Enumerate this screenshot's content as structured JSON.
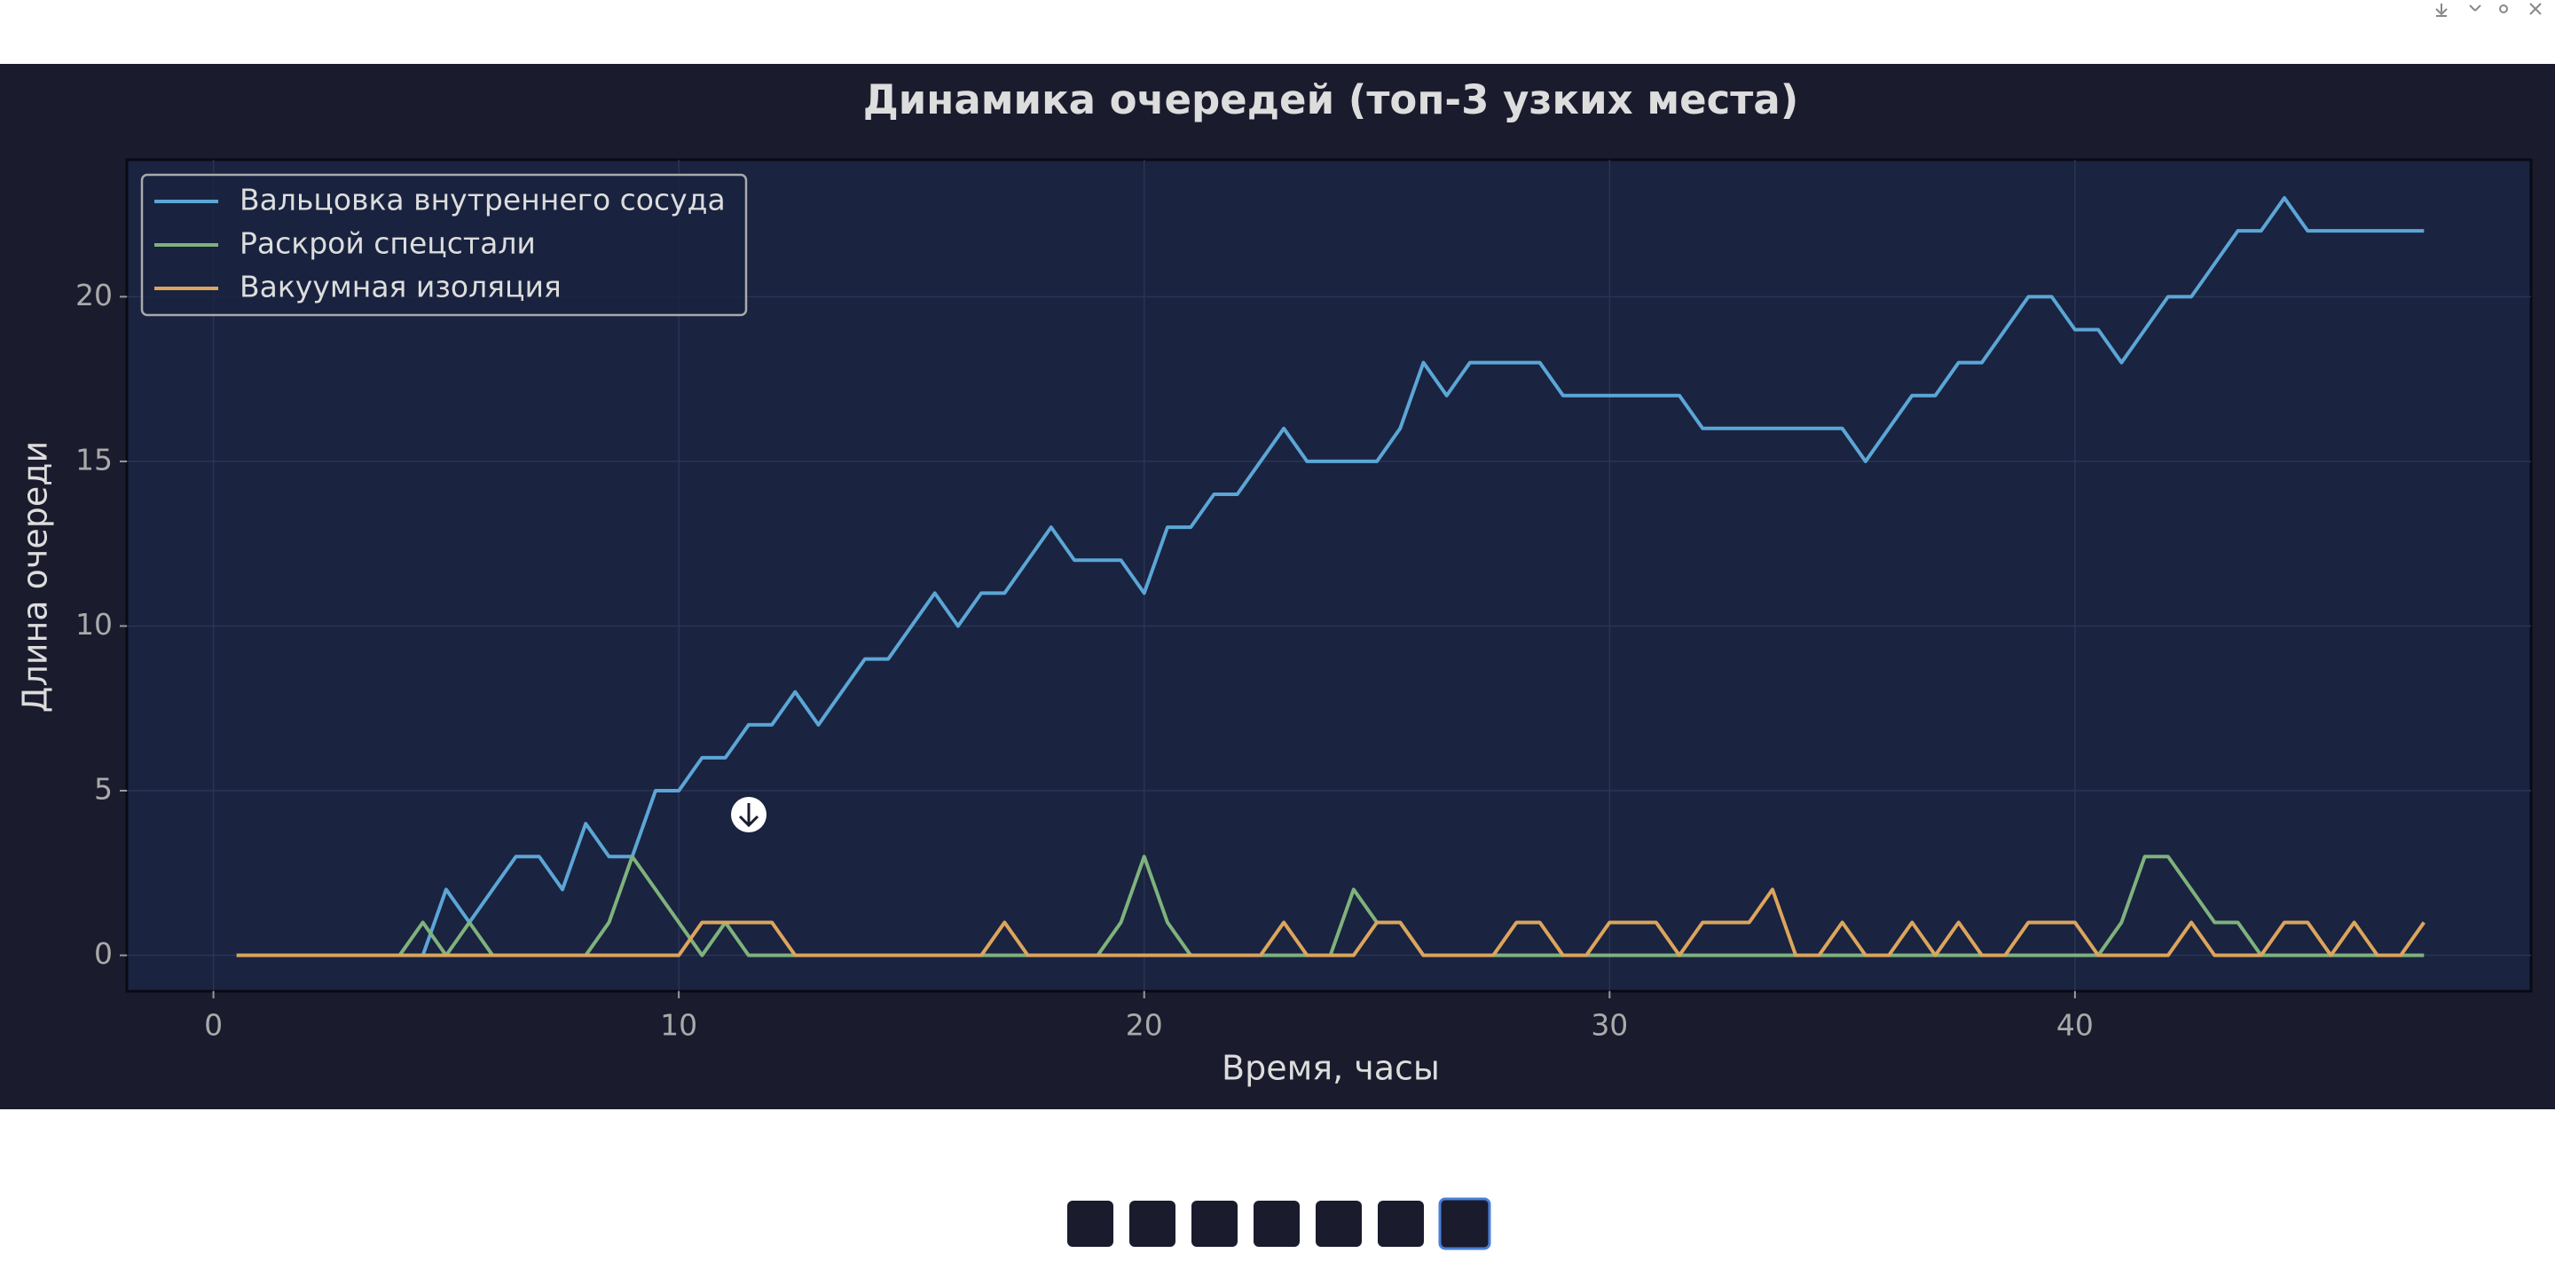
{
  "chart_data": {
    "type": "line",
    "title": "Динамика очередей (топ-3 узких места)",
    "xlabel": "Время, часы",
    "ylabel": "Длина очереди",
    "x": [
      0.5,
      1,
      1.5,
      2,
      2.5,
      3,
      3.5,
      4,
      4.5,
      5,
      5.5,
      6,
      6.5,
      7,
      7.5,
      8,
      8.5,
      9,
      9.5,
      10,
      10.5,
      11,
      11.5,
      12,
      12.5,
      13,
      13.5,
      14,
      14.5,
      15,
      15.5,
      16,
      16.5,
      17,
      17.5,
      18,
      18.5,
      19,
      19.5,
      20,
      20.5,
      21,
      21.5,
      22,
      22.5,
      23,
      23.5,
      24,
      24.5,
      25,
      25.5,
      26,
      26.5,
      27,
      27.5,
      28,
      28.5,
      29,
      29.5,
      30,
      30.5,
      31,
      31.5,
      32,
      32.5,
      33,
      33.5,
      34,
      34.5,
      35,
      35.5,
      36,
      36.5,
      37,
      37.5,
      38,
      38.5,
      39,
      39.5,
      40,
      40.5,
      41,
      41.5,
      42,
      42.5,
      43,
      43.5,
      44,
      44.5,
      45,
      45.5,
      46,
      46.5,
      47,
      47.5
    ],
    "series": [
      {
        "name": "Вальцовка внутреннего сосуда",
        "color": "#5ba6d6",
        "values": [
          0,
          0,
          0,
          0,
          0,
          0,
          0,
          0,
          0,
          2,
          1,
          2,
          3,
          3,
          2,
          4,
          3,
          3,
          5,
          5,
          6,
          6,
          7,
          7,
          8,
          7,
          8,
          9,
          9,
          10,
          11,
          10,
          11,
          11,
          12,
          13,
          12,
          12,
          12,
          11,
          13,
          13,
          14,
          14,
          15,
          16,
          15,
          15,
          15,
          15,
          16,
          18,
          17,
          18,
          18,
          18,
          18,
          17,
          17,
          17,
          17,
          17,
          17,
          16,
          16,
          16,
          16,
          16,
          16,
          16,
          15,
          16,
          17,
          17,
          18,
          18,
          19,
          20,
          20,
          19,
          19,
          18,
          19,
          20,
          20,
          21,
          22,
          22,
          23,
          22,
          22,
          22,
          22,
          22,
          22
        ]
      },
      {
        "name": "Раскрой спецстали",
        "color": "#7fb27c",
        "values": [
          0,
          0,
          0,
          0,
          0,
          0,
          0,
          0,
          1,
          0,
          1,
          0,
          0,
          0,
          0,
          0,
          1,
          3,
          2,
          1,
          0,
          1,
          0,
          0,
          0,
          0,
          0,
          0,
          0,
          0,
          0,
          0,
          0,
          0,
          0,
          0,
          0,
          0,
          1,
          3,
          1,
          0,
          0,
          0,
          0,
          0,
          0,
          0,
          2,
          1,
          1,
          0,
          0,
          0,
          0,
          0,
          0,
          0,
          0,
          0,
          0,
          0,
          0,
          0,
          0,
          0,
          0,
          0,
          0,
          0,
          0,
          0,
          0,
          0,
          0,
          0,
          0,
          0,
          0,
          0,
          0,
          1,
          3,
          3,
          2,
          1,
          1,
          0,
          0,
          0,
          0,
          0,
          0,
          0,
          0
        ]
      },
      {
        "name": "Вакуумная изоляция",
        "color": "#dca55c",
        "values": [
          0,
          0,
          0,
          0,
          0,
          0,
          0,
          0,
          0,
          0,
          0,
          0,
          0,
          0,
          0,
          0,
          0,
          0,
          0,
          0,
          1,
          1,
          1,
          1,
          0,
          0,
          0,
          0,
          0,
          0,
          0,
          0,
          0,
          1,
          0,
          0,
          0,
          0,
          0,
          0,
          0,
          0,
          0,
          0,
          0,
          1,
          0,
          0,
          0,
          1,
          1,
          0,
          0,
          0,
          0,
          1,
          1,
          0,
          0,
          1,
          1,
          1,
          0,
          1,
          1,
          1,
          2,
          0,
          0,
          1,
          0,
          0,
          1,
          0,
          1,
          0,
          0,
          1,
          1,
          1,
          0,
          0,
          0,
          0,
          1,
          0,
          0,
          0,
          1,
          1,
          0,
          1,
          0,
          0,
          1
        ]
      }
    ],
    "xlim": [
      -1.86,
      49.8
    ],
    "ylim": [
      -1.09,
      24.16
    ],
    "xticks": [
      0,
      10,
      20,
      30,
      40
    ],
    "yticks": [
      0,
      5,
      10,
      15,
      20
    ],
    "grid": true,
    "legend": "upper left"
  }
}
